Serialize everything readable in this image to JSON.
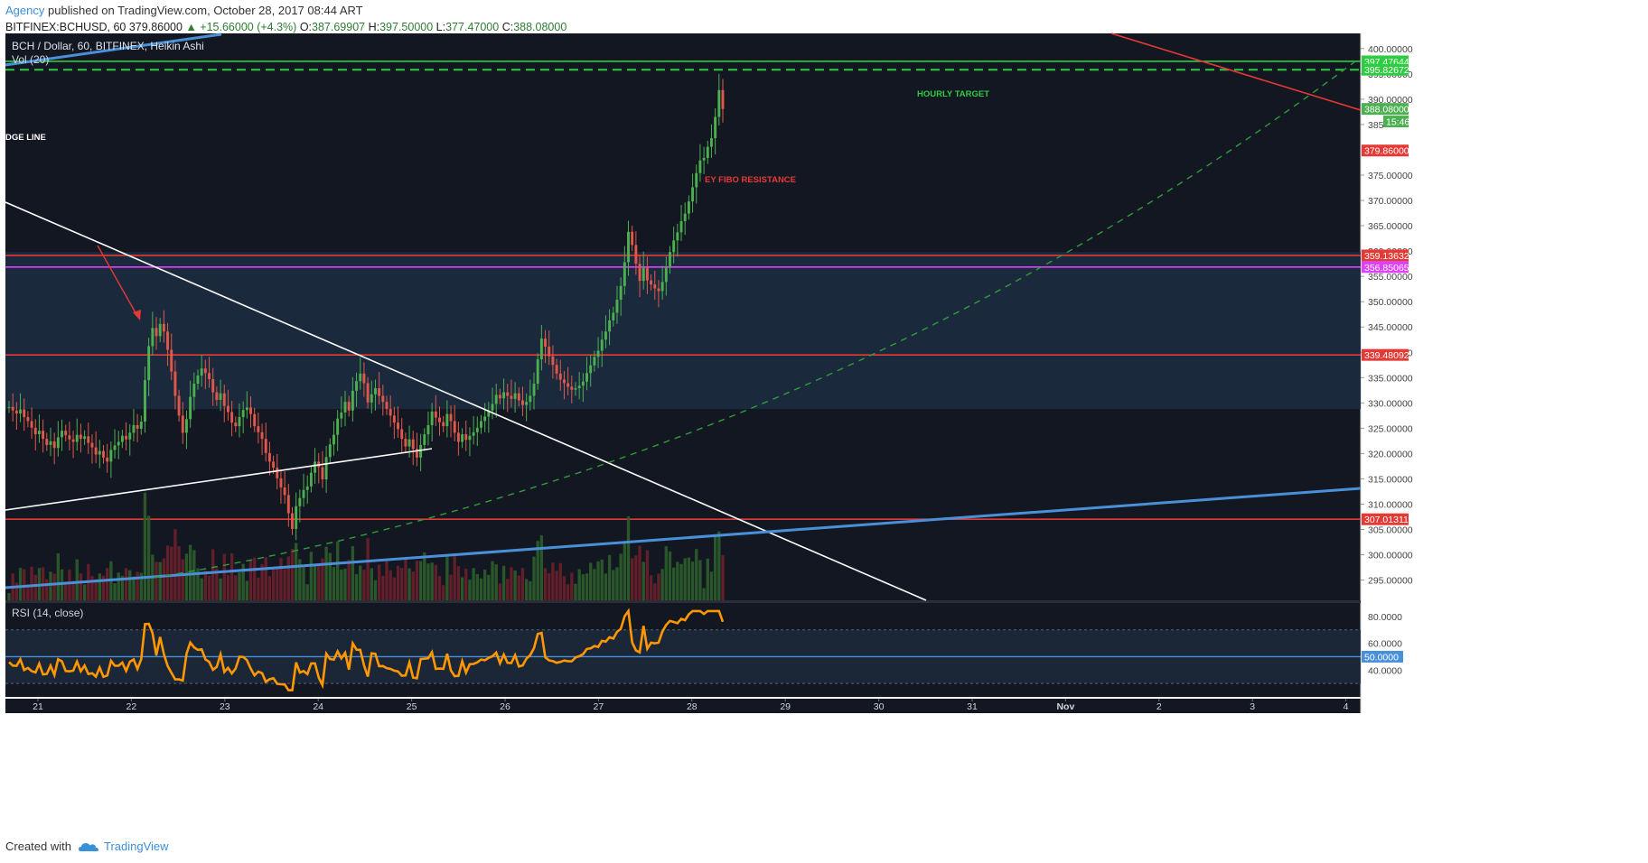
{
  "header": {
    "author": "Agency",
    "published": "published on TradingView.com, October 28, 2017 08:44 ART",
    "symbol": "BITFINEX:BCHUSD, 60",
    "last": "379.86000",
    "change": "+15.66000 (+4.3%)",
    "open_label": "O:",
    "open": "387.69907",
    "high_label": "H:",
    "high": "397.50000",
    "low_label": "L:",
    "low": "377.47000",
    "close_label": "C:",
    "close": "388.08000"
  },
  "legend": {
    "main": "BCH / Dollar, 60, BITFINEX, Heikin Ashi",
    "vol": "Vol (20)",
    "rsi": "RSI (14, close)"
  },
  "annotations": {
    "hourly_target": "HOURLY TARGET",
    "fibo": "EY FIBO RESISTANCE",
    "edge_line": "DGE LINE"
  },
  "colors": {
    "background": "#131722",
    "up": "#4caf50",
    "down": "#e0584a",
    "level_red": "#e53935",
    "level_green": "#2ecc40",
    "magenta": "#e040fb",
    "trend_blue": "#4a90d9",
    "rsi_line": "#ff9800",
    "zone": "#1d2b40"
  },
  "chart_data": {
    "type": "candlestick",
    "title": "BCH / Dollar, 60, BITFINEX, Heikin Ashi",
    "x_ticks": [
      "21",
      "22",
      "23",
      "24",
      "25",
      "26",
      "27",
      "28",
      "29",
      "30",
      "31",
      "Nov",
      "2",
      "3",
      "4"
    ],
    "y_ticks": [
      "400.00000",
      "395.00000",
      "390.00000",
      "385",
      "375.00000",
      "370.00000",
      "365.00000",
      "360.00000",
      "355.00000",
      "350.00000",
      "345.00000",
      "340.00000",
      "335.00000",
      "330.00000",
      "325.00000",
      "320.00000",
      "315.00000",
      "310.00000",
      "305.00000",
      "300.00000",
      "295.00000"
    ],
    "ylim": [
      291,
      403
    ],
    "price_labels": [
      {
        "text": "397.47644",
        "value": 397.47644,
        "color": "#2ecc40"
      },
      {
        "text": "395.82672",
        "value": 395.82672,
        "color": "#2ecc40"
      },
      {
        "text": "388.08000",
        "value": 388.08,
        "color": "#4caf50"
      },
      {
        "text": "15:46",
        "value": 385.6,
        "color": "#4caf50"
      },
      {
        "text": "379.86000",
        "value": 379.86,
        "color": "#e53935"
      },
      {
        "text": "359.13632",
        "value": 359.13632,
        "color": "#e53935"
      },
      {
        "text": "356.85065",
        "value": 356.85065,
        "color": "#e040fb"
      },
      {
        "text": "339.48092",
        "value": 339.48092,
        "color": "#e53935"
      },
      {
        "text": "307.01311",
        "value": 307.01311,
        "color": "#e53935"
      }
    ],
    "horizontal_levels": [
      {
        "value": 397.47644,
        "color": "#2ecc40",
        "dash": false
      },
      {
        "value": 395.82672,
        "color": "#2ecc40",
        "dash": true
      },
      {
        "value": 359.13632,
        "color": "#e53935",
        "dash": false
      },
      {
        "value": 356.85065,
        "color": "#e040fb",
        "dash": false
      },
      {
        "value": 339.48092,
        "color": "#e53935",
        "dash": false
      },
      {
        "value": 307.01311,
        "color": "#e53935",
        "dash": false
      }
    ],
    "zone": {
      "from": 328.8,
      "to": 359.8
    },
    "candles_close": [
      329.2,
      328.5,
      327.9,
      328.7,
      327.2,
      326.4,
      325.1,
      323.8,
      324.5,
      322.9,
      321.7,
      322.4,
      321.1,
      323.2,
      324.5,
      323.6,
      322.8,
      322.3,
      323.7,
      322.9,
      323.4,
      322.1,
      321.2,
      319.8,
      320.5,
      319.2,
      318.4,
      320.7,
      321.6,
      322.3,
      323.5,
      322.8,
      324.1,
      325.6,
      324.9,
      326.3,
      334.5,
      341.2,
      344.8,
      343.2,
      345.6,
      344.1,
      340.5,
      336.2,
      331.4,
      327.5,
      324.1,
      326.8,
      331.2,
      333.8,
      335.4,
      336.8,
      335.9,
      334.7,
      332.1,
      330.6,
      331.9,
      329.4,
      328.2,
      326.1,
      325.4,
      327.2,
      328.6,
      329.1,
      327.8,
      325.4,
      324.2,
      322.9,
      320.1,
      318.4,
      317.2,
      315.1,
      313.3,
      311.8,
      308.2,
      305.1,
      309.6,
      311.2,
      312.8,
      313.5,
      316.2,
      318.4,
      317.3,
      314.9,
      319.3,
      321.8,
      323.7,
      326.9,
      328.1,
      330.2,
      328.5,
      332.4,
      334.3,
      335.8,
      333.9,
      330.1,
      331.7,
      332.9,
      331.4,
      330.2,
      328.8,
      327.5,
      326.1,
      324.8,
      322.9,
      321.4,
      322.8,
      320.9,
      319.2,
      321.7,
      323.8,
      325.6,
      328.3,
      327.1,
      326.2,
      325.4,
      327.8,
      326.4,
      324.1,
      322.3,
      323.8,
      322.7,
      323.5,
      324.2,
      325.1,
      326.4,
      327.3,
      328.5,
      329.8,
      331.6,
      330.9,
      332.1,
      331.4,
      330.8,
      331.9,
      330.5,
      329.6,
      330.2,
      331.4,
      333.8,
      338.6,
      342.7,
      341.1,
      339.2,
      337.5,
      335.8,
      334.6,
      333.9,
      333.2,
      332.6,
      332.9,
      333.4,
      334.2,
      335.9,
      337.4,
      339.1,
      340.3,
      342.5,
      344.1,
      346.3,
      347.8,
      350.4,
      353.1,
      357.8,
      363.8,
      361.2,
      357.5,
      354.1,
      356.7,
      354.2,
      353.4,
      352.6,
      352.1,
      353.9,
      356.7,
      359.8,
      362.1,
      363.7,
      365.9,
      367.4,
      369.8,
      372.6,
      375.4,
      377.9,
      378.4,
      380.6,
      382.3,
      386.5,
      391.8,
      388.08
    ],
    "volume_scale": "relative",
    "rsi": {
      "ylim": [
        20,
        90
      ],
      "ticks": [
        "80.0000",
        "60.0000",
        "50.0000",
        "40.0000"
      ],
      "upper": 70,
      "lower": 30,
      "mid": 50,
      "mid_label": "50.0000"
    }
  },
  "footer": {
    "created_with": "Created with",
    "brand": "TradingView"
  }
}
